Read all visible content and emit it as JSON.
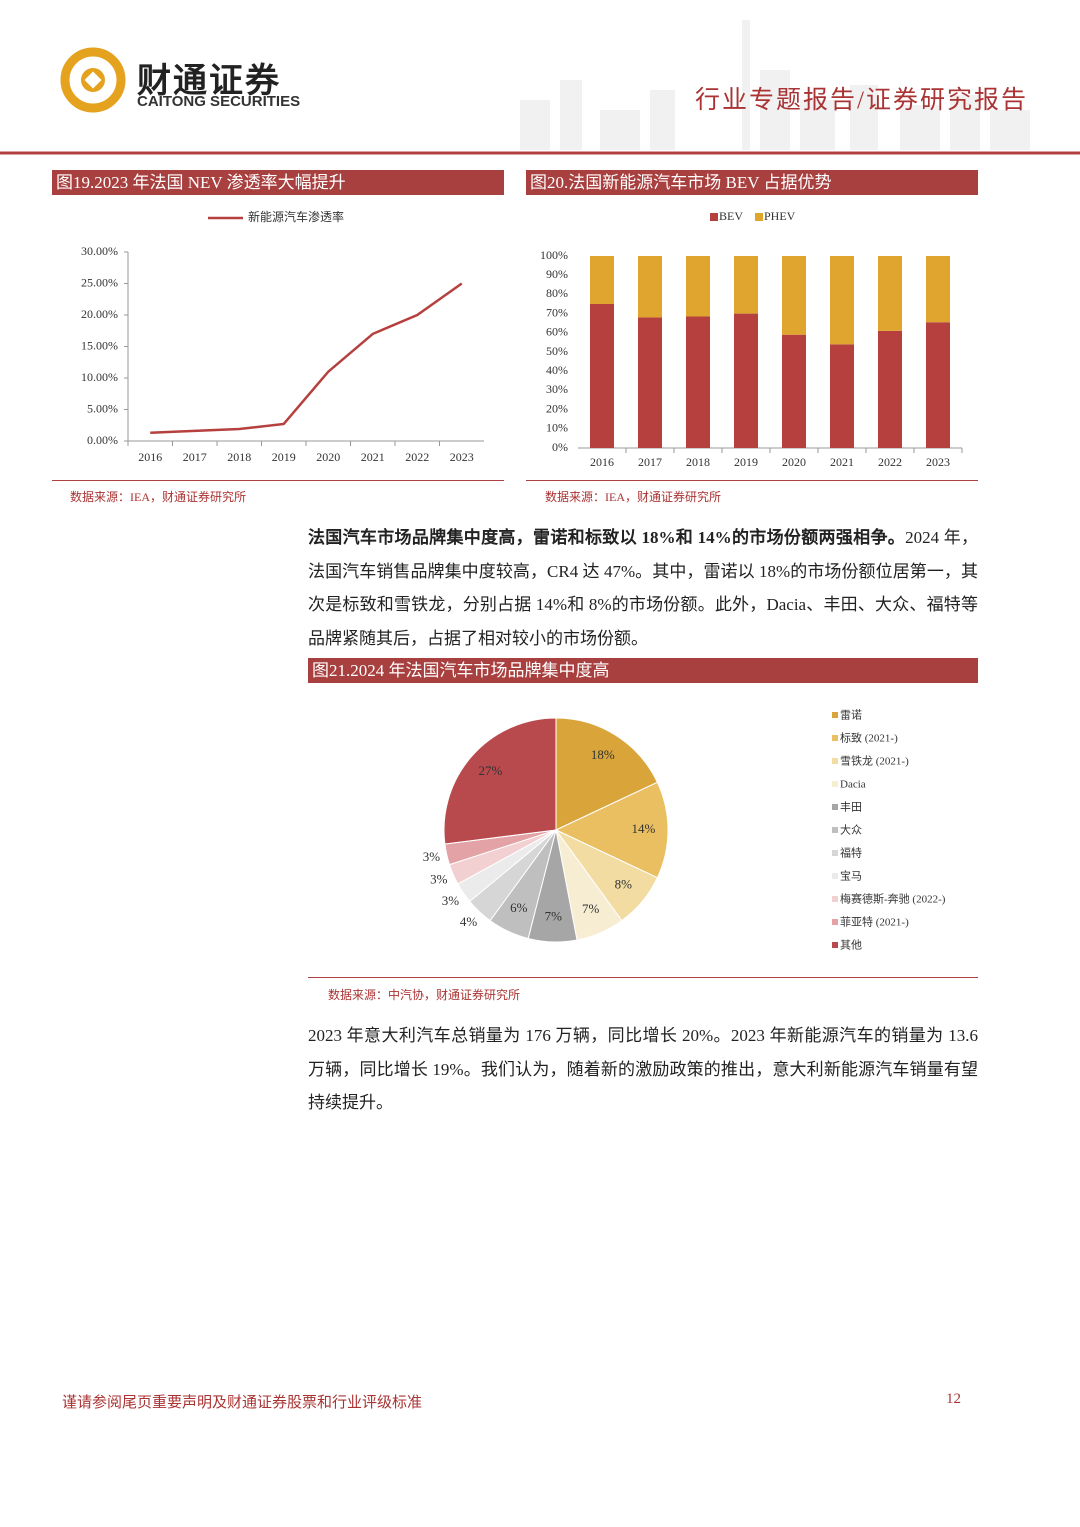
{
  "header": {
    "logo_cn": "财通证券",
    "logo_en": "CAITONG SECURITIES",
    "report_type": "行业专题报告/证券研究报告"
  },
  "chart_data": [
    {
      "type": "line",
      "title": "图19.2023 年法国 NEV 渗透率大幅提升",
      "source": "数据来源：IEA，财通证券研究所",
      "categories": [
        "2016",
        "2017",
        "2018",
        "2019",
        "2020",
        "2021",
        "2022",
        "2023"
      ],
      "series": [
        {
          "name": "新能源汽车渗透率",
          "color": "#b5403e",
          "values": [
            1.3,
            1.6,
            1.9,
            2.7,
            11,
            17,
            20,
            25
          ]
        }
      ],
      "ylim": [
        0,
        30
      ],
      "yticks": [
        {
          "value": 0,
          "label": "0.00%"
        },
        {
          "value": 5,
          "label": "5.00%"
        },
        {
          "value": 10,
          "label": "10.00%"
        },
        {
          "value": 15,
          "label": "15.00%"
        },
        {
          "value": 20,
          "label": "20.00%"
        },
        {
          "value": 25,
          "label": "25.00%"
        },
        {
          "value": 30,
          "label": "30.00%"
        }
      ],
      "grid": false
    },
    {
      "type": "stacked-bar",
      "title": "图20.法国新能源汽车市场 BEV 占据优势",
      "source": "数据来源：IEA，财通证券研究所",
      "categories": [
        "2016",
        "2017",
        "2018",
        "2019",
        "2020",
        "2021",
        "2022",
        "2023"
      ],
      "series": [
        {
          "name": "BEV",
          "color": "#b5403e",
          "values": [
            75,
            68,
            68.5,
            70,
            59,
            54,
            61,
            65.5
          ]
        },
        {
          "name": "PHEV",
          "color": "#e0a52e",
          "values": [
            25,
            32,
            31.5,
            30,
            41,
            46,
            39,
            34.5
          ]
        }
      ],
      "ylim": [
        0,
        100
      ],
      "yticks": [
        {
          "value": 0,
          "label": "0%"
        },
        {
          "value": 10,
          "label": "10%"
        },
        {
          "value": 20,
          "label": "20%"
        },
        {
          "value": 30,
          "label": "30%"
        },
        {
          "value": 40,
          "label": "40%"
        },
        {
          "value": 50,
          "label": "50%"
        },
        {
          "value": 60,
          "label": "60%"
        },
        {
          "value": 70,
          "label": "70%"
        },
        {
          "value": 80,
          "label": "80%"
        },
        {
          "value": 90,
          "label": "90%"
        },
        {
          "value": 100,
          "label": "100%"
        }
      ],
      "grid": false
    },
    {
      "type": "pie",
      "title": "图21.2024 年法国汽车市场品牌集中度高",
      "source": "数据来源：中汽协，财通证券研究所",
      "categories": [
        "雷诺",
        "标致 (2021-)",
        "雪铁龙 (2021-)",
        "Dacia",
        "丰田",
        "大众",
        "福特",
        "宝马",
        "梅赛德斯-奔驰 (2022-)",
        "菲亚特 (2021-)",
        "其他"
      ],
      "values": [
        18,
        14,
        8,
        7,
        7,
        6,
        4,
        3,
        3,
        3,
        27
      ],
      "value_labels": [
        "18%",
        "14%",
        "8%",
        "7%",
        "7%",
        "6%",
        "4%",
        "3%",
        "3%",
        "3%",
        "27%"
      ],
      "colors": [
        "#d9a43a",
        "#e9bf62",
        "#f2dca2",
        "#f7edd3",
        "#a6a6a6",
        "#bfbfbf",
        "#d6d6d6",
        "#ebebeb",
        "#f2cfd1",
        "#e3a2a6",
        "#b84a4d"
      ]
    }
  ],
  "paragraphs": [
    {
      "lead": "法国汽车市场品牌集中度高，雷诺和标致以 18%和 14%的市场份额两强相争。",
      "text": "2024 年，法国汽车销售品牌集中度较高，CR4 达 47%。其中，雷诺以 18%的市场份额位居第一，其次是标致和雪铁龙，分别占据 14%和 8%的市场份额。此外，Dacia、丰田、大众、福特等品牌紧随其后，占据了相对较小的市场份额。"
    },
    {
      "text": "2023 年意大利汽车总销量为 176 万辆，同比增长 20%。2023 年新能源汽车的销量为 13.6 万辆，同比增长 19%。我们认为，随着新的激励政策的推出，意大利新能源汽车销量有望持续提升。"
    }
  ],
  "footer": {
    "disclaimer": "谨请参阅尾页重要声明及财通证券股票和行业评级标准",
    "page": "12"
  }
}
